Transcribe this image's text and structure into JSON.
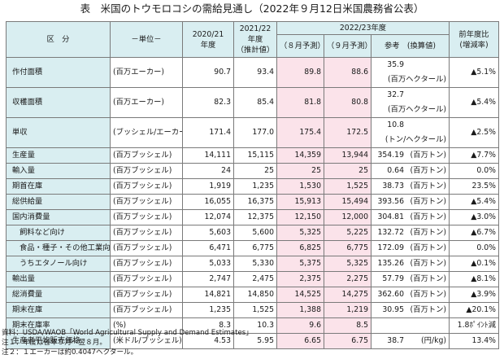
{
  "title": "表　米国のトウモロコシの需給見通し（2022年９月12日米国農務省公表）",
  "header": {
    "category": "区　分",
    "unit": "－単位－",
    "col_2020": "2020/21\n年度",
    "col_2021": "2021/22\n年度\n（推計値）",
    "group_2022": "2022/23年度",
    "col_aug": "（８月予測）",
    "col_sep": "（９月予測）",
    "col_ref": "参考　(換算値)",
    "col_change": "前年度比\n(増減率)"
  },
  "rows": [
    {
      "label": "作付面積",
      "unit": "(百万エーカー)",
      "v2020": "90.7",
      "v2021": "93.4",
      "aug": "89.8",
      "sep": "88.6",
      "ref_val": "35.9",
      "ref_unit": "(百万ヘクタール)",
      "change": "▲5.1%"
    },
    {
      "label": "収穫面積",
      "unit": "(百万エーカー)",
      "v2020": "82.3",
      "v2021": "85.4",
      "aug": "81.8",
      "sep": "80.8",
      "ref_val": "32.7",
      "ref_unit": "(百万ヘクタール)",
      "change": "▲5.4%"
    },
    {
      "label": "単収",
      "unit": "(ブッシェル/エーカー)",
      "v2020": "171.4",
      "v2021": "177.0",
      "aug": "175.4",
      "sep": "172.5",
      "ref_val": "10.8",
      "ref_unit": "(トン/ヘクタール)",
      "change": "▲2.5%"
    },
    {
      "label": "生産量",
      "unit": "(百万ブッシェル)",
      "v2020": "14,111",
      "v2021": "15,115",
      "aug": "14,359",
      "sep": "13,944",
      "ref_val": "354.19",
      "ref_unit": "(百万トン)",
      "change": "▲7.7%"
    },
    {
      "label": "輸入量",
      "unit": "(百万ブッシェル)",
      "v2020": "24",
      "v2021": "25",
      "aug": "25",
      "sep": "25",
      "ref_val": "0.64",
      "ref_unit": "(百万トン)",
      "change": "0.0%"
    },
    {
      "label": "期首在庫",
      "unit": "(百万ブッシェル)",
      "v2020": "1,919",
      "v2021": "1,235",
      "aug": "1,530",
      "sep": "1,525",
      "ref_val": "38.73",
      "ref_unit": "(百万トン)",
      "change": "23.5%"
    },
    {
      "label": "総供給量",
      "unit": "(百万ブッシェル)",
      "v2020": "16,055",
      "v2021": "16,375",
      "aug": "15,913",
      "sep": "15,494",
      "ref_val": "393.56",
      "ref_unit": "(百万トン)",
      "change": "▲5.4%"
    },
    {
      "label": "国内消費量",
      "unit": "(百万ブッシェル)",
      "v2020": "12,074",
      "v2021": "12,375",
      "aug": "12,150",
      "sep": "12,000",
      "ref_val": "304.81",
      "ref_unit": "(百万トン)",
      "change": "▲3.0%"
    },
    {
      "label": "飼料など向け",
      "unit": "(百万ブッシェル)",
      "v2020": "5,603",
      "v2021": "5,600",
      "aug": "5,325",
      "sep": "5,225",
      "ref_val": "132.72",
      "ref_unit": "(百万トン)",
      "change": "▲6.7%",
      "indent": true
    },
    {
      "label": "食品・種子・その他工業向け",
      "unit": "(百万ブッシェル)",
      "v2020": "6,471",
      "v2021": "6,775",
      "aug": "6,825",
      "sep": "6,775",
      "ref_val": "172.09",
      "ref_unit": "(百万トン)",
      "change": "0.0%",
      "indent": true
    },
    {
      "label": "うちエタノール向け",
      "unit": "(百万ブッシェル)",
      "v2020": "5,033",
      "v2021": "5,330",
      "aug": "5,375",
      "sep": "5,325",
      "ref_val": "135.26",
      "ref_unit": "(百万トン)",
      "change": "▲0.1%",
      "indent": true
    },
    {
      "label": "輸出量",
      "unit": "(百万ブッシェル)",
      "v2020": "2,747",
      "v2021": "2,475",
      "aug": "2,375",
      "sep": "2,275",
      "ref_val": "57.79",
      "ref_unit": "(百万トン)",
      "change": "▲8.1%"
    },
    {
      "label": "総消費量",
      "unit": "(百万ブッシェル)",
      "v2020": "14,821",
      "v2021": "14,850",
      "aug": "14,525",
      "sep": "14,275",
      "ref_val": "362.60",
      "ref_unit": "(百万トン)",
      "change": "▲3.9%"
    },
    {
      "label": "期末在庫",
      "unit": "(百万ブッシェル)",
      "v2020": "1,235",
      "v2021": "1,525",
      "aug": "1,388",
      "sep": "1,219",
      "ref_val": "30.95",
      "ref_unit": "(百万トン)",
      "change": "▲20.1%"
    },
    {
      "label": "期末在庫率",
      "unit": "(%)",
      "v2020": "8.3",
      "v2021": "10.3",
      "aug": "9.6",
      "sep": "8.5",
      "ref_val": "",
      "ref_unit": "",
      "change": "1.8ﾎﾟｲﾝﾄ減"
    },
    {
      "label": "生産者平均販売価格",
      "unit": "(米ドル/ブッシェル)",
      "v2020": "4.53",
      "v2021": "5.95",
      "aug": "6.65",
      "sep": "6.75",
      "ref_val": "38.7",
      "ref_unit": "(円/kg)",
      "change": "13.4%"
    }
  ],
  "notes": [
    "資料：USDA/WAOB「World Agricultural Supply and Demand Estimates」",
    "注１：年度は各年９月～翌８月。",
    "注２：１エーカーは約0.4047ヘクタール。"
  ]
}
